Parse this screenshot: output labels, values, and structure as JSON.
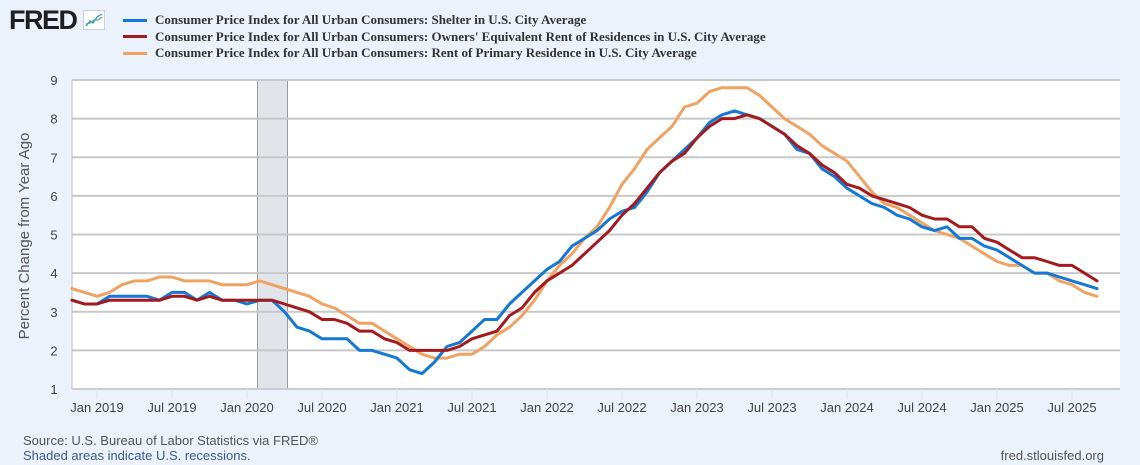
{
  "header": {
    "logo_text": "FRED",
    "logo_icon": "line-chart-icon"
  },
  "chart_data": {
    "type": "line",
    "title": "",
    "xlabel": "",
    "ylabel": "Percent Change from Year Ago",
    "ylim": [
      1,
      9
    ],
    "yticks": [
      1,
      2,
      3,
      4,
      5,
      6,
      7,
      8,
      9
    ],
    "grid": true,
    "legend_position": "top",
    "x_start": "2018-11",
    "x_end": "2025-09",
    "xticks": [
      "Jan 2019",
      "Jul 2019",
      "Jan 2020",
      "Jul 2020",
      "Jan 2021",
      "Jul 2021",
      "Jan 2022",
      "Jul 2022",
      "Jan 2023",
      "Jul 2023",
      "Jan 2024",
      "Jul 2024",
      "Jan 2025",
      "Jul 2025"
    ],
    "xtick_month_index": [
      2,
      8,
      14,
      20,
      26,
      32,
      38,
      44,
      50,
      56,
      62,
      68,
      74,
      80
    ],
    "recessions": [
      {
        "start": "2020-02",
        "end": "2020-04",
        "start_index": 15,
        "end_index": 17
      }
    ],
    "series": [
      {
        "name": "Consumer Price Index for All Urban Consumers: Shelter in U.S. City Average",
        "color": "#1478d4",
        "values": [
          3.3,
          3.2,
          3.2,
          3.4,
          3.4,
          3.4,
          3.4,
          3.3,
          3.5,
          3.5,
          3.3,
          3.5,
          3.3,
          3.3,
          3.2,
          3.3,
          3.3,
          3.0,
          2.6,
          2.5,
          2.3,
          2.3,
          2.3,
          2.0,
          2.0,
          1.9,
          1.8,
          1.5,
          1.4,
          1.7,
          2.1,
          2.2,
          2.5,
          2.8,
          2.8,
          3.2,
          3.5,
          3.8,
          4.1,
          4.3,
          4.7,
          4.9,
          5.1,
          5.4,
          5.6,
          5.7,
          6.1,
          6.6,
          6.9,
          7.2,
          7.5,
          7.9,
          8.1,
          8.2,
          8.1,
          8.0,
          7.8,
          7.6,
          7.2,
          7.1,
          6.7,
          6.5,
          6.2,
          6.0,
          5.8,
          5.7,
          5.5,
          5.4,
          5.2,
          5.1,
          5.2,
          4.9,
          4.9,
          4.7,
          4.6,
          4.4,
          4.2,
          4.0,
          4.0,
          3.9,
          3.8,
          3.7,
          3.6
        ]
      },
      {
        "name": "Consumer Price Index for All Urban Consumers: Owners' Equivalent Rent of Residences in U.S. City Average",
        "color": "#a31a1e",
        "values": [
          3.3,
          3.2,
          3.2,
          3.3,
          3.3,
          3.3,
          3.3,
          3.3,
          3.4,
          3.4,
          3.3,
          3.4,
          3.3,
          3.3,
          3.3,
          3.3,
          3.3,
          3.2,
          3.1,
          3.0,
          2.8,
          2.8,
          2.7,
          2.5,
          2.5,
          2.3,
          2.2,
          2.0,
          2.0,
          2.0,
          2.0,
          2.1,
          2.3,
          2.4,
          2.5,
          2.9,
          3.1,
          3.5,
          3.8,
          4.0,
          4.2,
          4.5,
          4.8,
          5.1,
          5.5,
          5.8,
          6.2,
          6.6,
          6.9,
          7.1,
          7.5,
          7.8,
          8.0,
          8.0,
          8.1,
          8.0,
          7.8,
          7.6,
          7.3,
          7.1,
          6.8,
          6.6,
          6.3,
          6.2,
          6.0,
          5.9,
          5.8,
          5.7,
          5.5,
          5.4,
          5.4,
          5.2,
          5.2,
          4.9,
          4.8,
          4.6,
          4.4,
          4.4,
          4.3,
          4.2,
          4.2,
          4.0,
          3.8
        ]
      },
      {
        "name": "Consumer Price Index for All Urban Consumers: Rent of Primary Residence in U.S. City Average",
        "color": "#f0a260",
        "values": [
          3.6,
          3.5,
          3.4,
          3.5,
          3.7,
          3.8,
          3.8,
          3.9,
          3.9,
          3.8,
          3.8,
          3.8,
          3.7,
          3.7,
          3.7,
          3.8,
          3.7,
          3.6,
          3.5,
          3.4,
          3.2,
          3.1,
          2.9,
          2.7,
          2.7,
          2.5,
          2.3,
          2.1,
          1.9,
          1.8,
          1.8,
          1.9,
          1.9,
          2.1,
          2.4,
          2.6,
          2.9,
          3.3,
          3.8,
          4.2,
          4.5,
          4.9,
          5.2,
          5.7,
          6.3,
          6.7,
          7.2,
          7.5,
          7.8,
          8.3,
          8.4,
          8.7,
          8.8,
          8.8,
          8.8,
          8.6,
          8.3,
          8.0,
          7.8,
          7.6,
          7.3,
          7.1,
          6.9,
          6.5,
          6.1,
          5.8,
          5.7,
          5.5,
          5.3,
          5.1,
          5.0,
          4.9,
          4.7,
          4.5,
          4.3,
          4.2,
          4.2,
          4.0,
          4.0,
          3.8,
          3.7,
          3.5,
          3.4
        ]
      }
    ]
  },
  "footer": {
    "source": "Source: U.S. Bureau of Labor Statistics via FRED®",
    "recession_note": "Shaded areas indicate U.S. recessions.",
    "url": "fred.stlouisfed.org"
  }
}
